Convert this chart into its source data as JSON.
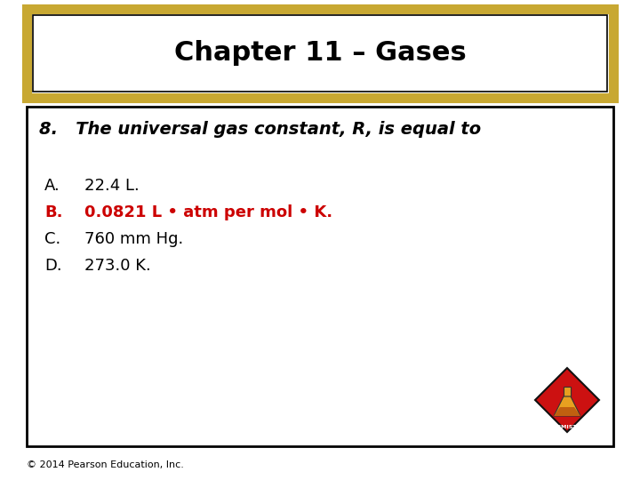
{
  "background_color": "#ffffff",
  "title_text": "Chapter 11 – Gases",
  "title_box_border_color": "#c8a832",
  "title_box_inner_border": "#000000",
  "title_fontsize": 22,
  "question_text": "8.   The universal gas constant, R, is equal to",
  "question_fontsize": 14,
  "answers": [
    {
      "label": "A.",
      "text": "22.4 L.",
      "color": "#000000",
      "bold": false
    },
    {
      "label": "B.",
      "text": "0.0821 L • atm per mol • K.",
      "color": "#cc0000",
      "bold": true
    },
    {
      "label": "C.",
      "text": "760 mm Hg.",
      "color": "#000000",
      "bold": false
    },
    {
      "label": "D.",
      "text": "273.0 K.",
      "color": "#000000",
      "bold": false
    }
  ],
  "answer_fontsize": 13,
  "label_fontsize": 13,
  "footer_text": "© 2014 Pearson Education, Inc.",
  "footer_fontsize": 8,
  "title_box_border_color_gold": "#c8a832",
  "content_box_border_color": "#000000"
}
